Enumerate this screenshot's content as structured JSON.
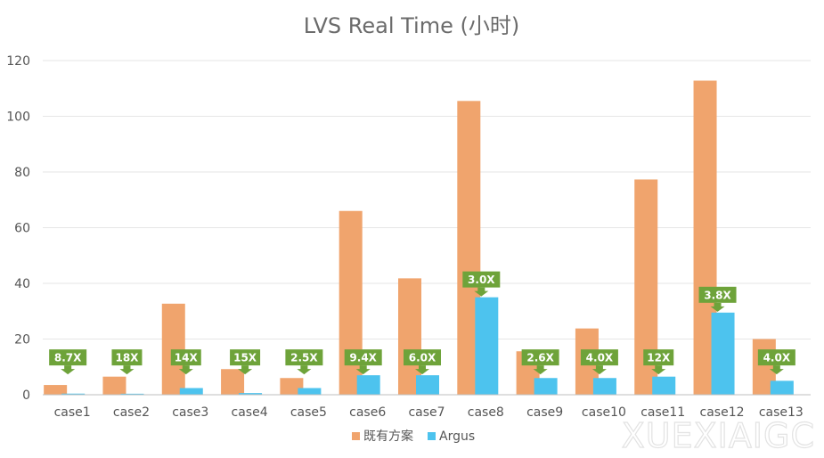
{
  "chart_data": {
    "type": "bar",
    "title": "LVS Real Time (小时)",
    "categories": [
      "case1",
      "case2",
      "case3",
      "case4",
      "case5",
      "case6",
      "case7",
      "case8",
      "case9",
      "case10",
      "case11",
      "case12",
      "case13"
    ],
    "series": [
      {
        "name": "既有方案",
        "color": "#F0A46D",
        "values": [
          3.5,
          6.5,
          32.7,
          9.2,
          6.0,
          66.0,
          41.8,
          105.5,
          15.6,
          23.8,
          77.3,
          112.8,
          20.0
        ]
      },
      {
        "name": "Argus",
        "color": "#4DC3EE",
        "values": [
          0.4,
          0.36,
          2.4,
          0.6,
          2.4,
          7.0,
          7.0,
          35.0,
          6.0,
          6.0,
          6.5,
          29.5,
          5.0
        ]
      }
    ],
    "ratios": [
      "8.7X",
      "18X",
      "14X",
      "15X",
      "2.5X",
      "9.4X",
      "6.0X",
      "3.0X",
      "2.6X",
      "4.0X",
      "12X",
      "3.8X",
      "4.0X"
    ],
    "ratio_color": "#6EA33A",
    "ylim": [
      0,
      120
    ],
    "yticks": [
      0,
      20,
      40,
      60,
      80,
      100,
      120
    ],
    "grid": true,
    "legend_position": "bottom",
    "xlabel": "",
    "ylabel": ""
  },
  "watermark": "XUEXIAIGC"
}
